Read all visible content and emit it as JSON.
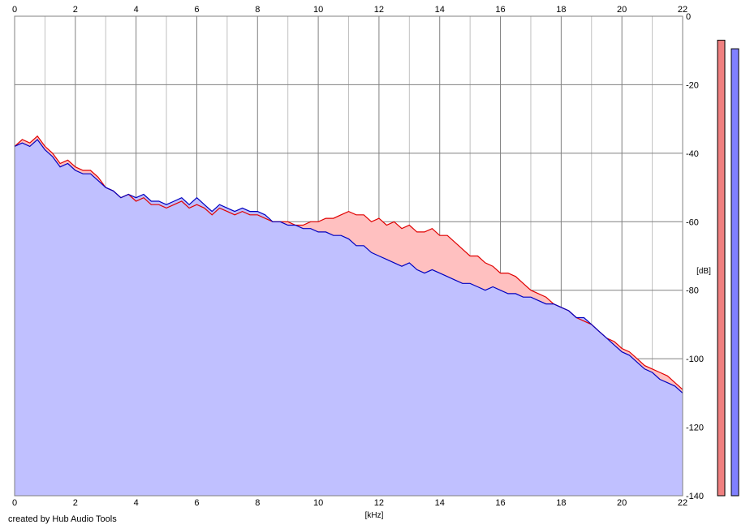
{
  "footer": {
    "credit": "created by Hub Audio Tools"
  },
  "colors": {
    "plot_fill": "#c0c0ff",
    "blue_line": "#0000c0",
    "red_line": "#e00000",
    "red_fill": "#ffc0c0",
    "grid_major": "#808080",
    "grid_minor": "#c0c0c0",
    "level_red": "#f08080",
    "level_blue": "#8080ff"
  },
  "chart_data": {
    "type": "area",
    "xlabel": "[kHz]",
    "ylabel": "[dB]",
    "xlim": [
      0,
      22
    ],
    "ylim": [
      -140,
      0
    ],
    "x_ticks": [
      "0",
      "2",
      "4",
      "6",
      "8",
      "10",
      "12",
      "14",
      "16",
      "18",
      "20",
      "22"
    ],
    "y_ticks": [
      "0",
      "-20",
      "-40",
      "-60",
      "-80",
      "-100",
      "-120",
      "-140"
    ],
    "grid": true,
    "series": [
      {
        "channel": "red",
        "x": [
          0.0,
          0.25,
          0.5,
          0.75,
          1.0,
          1.25,
          1.5,
          1.75,
          2.0,
          2.25,
          2.5,
          2.75,
          3.0,
          3.25,
          3.5,
          3.75,
          4.0,
          4.25,
          4.5,
          4.75,
          5.0,
          5.25,
          5.5,
          5.75,
          6.0,
          6.25,
          6.5,
          6.75,
          7.0,
          7.25,
          7.5,
          7.75,
          8.0,
          8.25,
          8.5,
          8.75,
          9.0,
          9.25,
          9.5,
          9.75,
          10.0,
          10.25,
          10.5,
          10.75,
          11.0,
          11.25,
          11.5,
          11.75,
          12.0,
          12.25,
          12.5,
          12.75,
          13.0,
          13.25,
          13.5,
          13.75,
          14.0,
          14.25,
          14.5,
          14.75,
          15.0,
          15.25,
          15.5,
          15.75,
          16.0,
          16.25,
          16.5,
          16.75,
          17.0,
          17.25,
          17.5,
          17.75,
          18.0,
          18.25,
          18.5,
          18.75,
          19.0,
          19.25,
          19.5,
          19.75,
          20.0,
          20.25,
          20.5,
          20.75,
          21.0,
          21.25,
          21.5,
          21.75,
          22.0
        ],
        "values": [
          -38,
          -36,
          -37,
          -35,
          -38,
          -40,
          -43,
          -42,
          -44,
          -45,
          -45,
          -47,
          -50,
          -51,
          -53,
          -52,
          -54,
          -53,
          -55,
          -55,
          -56,
          -55,
          -54,
          -56,
          -55,
          -56,
          -58,
          -56,
          -57,
          -58,
          -57,
          -58,
          -58,
          -59,
          -60,
          -60,
          -60,
          -61,
          -61,
          -60,
          -60,
          -59,
          -59,
          -58,
          -57,
          -58,
          -58,
          -60,
          -59,
          -61,
          -60,
          -62,
          -61,
          -63,
          -63,
          -62,
          -64,
          -64,
          -66,
          -68,
          -70,
          -70,
          -72,
          -73,
          -75,
          -75,
          -76,
          -78,
          -80,
          -81,
          -82,
          -84,
          -85,
          -86,
          -88,
          -89,
          -90,
          -92,
          -94,
          -95,
          -97,
          -98,
          -100,
          -102,
          -103,
          -104,
          -105,
          -107,
          -109
        ]
      },
      {
        "channel": "blue",
        "x": [
          0.0,
          0.25,
          0.5,
          0.75,
          1.0,
          1.25,
          1.5,
          1.75,
          2.0,
          2.25,
          2.5,
          2.75,
          3.0,
          3.25,
          3.5,
          3.75,
          4.0,
          4.25,
          4.5,
          4.75,
          5.0,
          5.25,
          5.5,
          5.75,
          6.0,
          6.25,
          6.5,
          6.75,
          7.0,
          7.25,
          7.5,
          7.75,
          8.0,
          8.25,
          8.5,
          8.75,
          9.0,
          9.25,
          9.5,
          9.75,
          10.0,
          10.25,
          10.5,
          10.75,
          11.0,
          11.25,
          11.5,
          11.75,
          12.0,
          12.25,
          12.5,
          12.75,
          13.0,
          13.25,
          13.5,
          13.75,
          14.0,
          14.25,
          14.5,
          14.75,
          15.0,
          15.25,
          15.5,
          15.75,
          16.0,
          16.25,
          16.5,
          16.75,
          17.0,
          17.25,
          17.5,
          17.75,
          18.0,
          18.25,
          18.5,
          18.75,
          19.0,
          19.25,
          19.5,
          19.75,
          20.0,
          20.25,
          20.5,
          20.75,
          21.0,
          21.25,
          21.5,
          21.75,
          22.0
        ],
        "values": [
          -38,
          -37,
          -38,
          -36,
          -39,
          -41,
          -44,
          -43,
          -45,
          -46,
          -46,
          -48,
          -50,
          -51,
          -53,
          -52,
          -53,
          -52,
          -54,
          -54,
          -55,
          -54,
          -53,
          -55,
          -53,
          -55,
          -57,
          -55,
          -56,
          -57,
          -56,
          -57,
          -57,
          -58,
          -60,
          -60,
          -61,
          -61,
          -62,
          -62,
          -63,
          -63,
          -64,
          -64,
          -65,
          -67,
          -67,
          -69,
          -70,
          -71,
          -72,
          -73,
          -72,
          -74,
          -75,
          -74,
          -75,
          -76,
          -77,
          -78,
          -78,
          -79,
          -80,
          -79,
          -80,
          -81,
          -81,
          -82,
          -82,
          -83,
          -84,
          -84,
          -85,
          -86,
          -88,
          -88,
          -90,
          -92,
          -94,
          -96,
          -98,
          -99,
          -101,
          -103,
          -104,
          -106,
          -107,
          -108,
          -110
        ]
      }
    ],
    "level_meters": [
      {
        "channel": "red",
        "value_db": -7
      },
      {
        "channel": "blue",
        "value_db": -9.5
      }
    ]
  }
}
